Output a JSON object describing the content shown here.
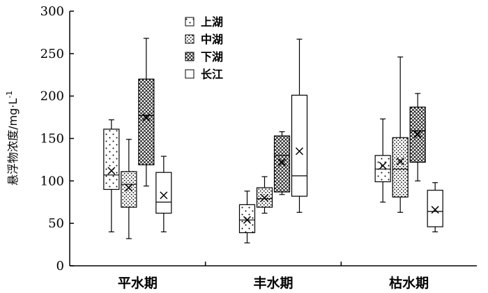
{
  "chart_data": {
    "type": "box",
    "ylabel": "悬浮物浓度/mg·L",
    "ylabel_superscript": "-1",
    "ylim": [
      0,
      300
    ],
    "yticks": [
      0,
      50,
      100,
      150,
      200,
      250,
      300
    ],
    "categories": [
      "平水期",
      "丰水期",
      "枯水期"
    ],
    "legend": {
      "position": "top-center"
    },
    "series": [
      {
        "name": "上湖",
        "pattern": "dots-sparse",
        "boxes": [
          {
            "min": 40,
            "q1": 90,
            "median": 107,
            "q3": 161,
            "max": 172,
            "mean": 112
          },
          {
            "min": 27,
            "q1": 39,
            "median": 54,
            "q3": 72,
            "max": 88,
            "mean": 54
          },
          {
            "min": 75,
            "q1": 99,
            "median": 114,
            "q3": 130,
            "max": 173,
            "mean": 118
          }
        ]
      },
      {
        "name": "中湖",
        "pattern": "dots-dense",
        "boxes": [
          {
            "min": 32,
            "q1": 69,
            "median": 96,
            "q3": 111,
            "max": 149,
            "mean": 92
          },
          {
            "min": 62,
            "q1": 69,
            "median": 79,
            "q3": 92,
            "max": 105,
            "mean": 80
          },
          {
            "min": 63,
            "q1": 81,
            "median": 114,
            "q3": 151,
            "max": 246,
            "mean": 123
          }
        ]
      },
      {
        "name": "下湖",
        "pattern": "crosshatch",
        "boxes": [
          {
            "min": 94,
            "q1": 119,
            "median": 177,
            "q3": 220,
            "max": 268,
            "mean": 175
          },
          {
            "min": 84,
            "q1": 87,
            "median": 130,
            "q3": 153,
            "max": 158,
            "mean": 122
          },
          {
            "min": 100,
            "q1": 122,
            "median": 159,
            "q3": 187,
            "max": 203,
            "mean": 155
          }
        ]
      },
      {
        "name": "长江",
        "pattern": "none",
        "boxes": [
          {
            "min": 40,
            "q1": 62,
            "median": 75,
            "q3": 110,
            "max": 129,
            "mean": 83
          },
          {
            "min": 63,
            "q1": 82,
            "median": 106,
            "q3": 201,
            "max": 267,
            "mean": 135
          },
          {
            "min": 40,
            "q1": 46,
            "median": 64,
            "q3": 89,
            "max": 98,
            "mean": 66
          }
        ]
      }
    ]
  }
}
